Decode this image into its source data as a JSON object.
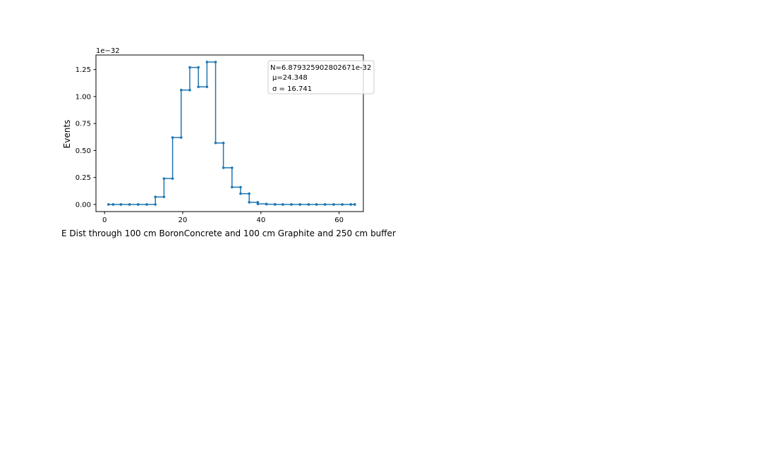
{
  "chart_data": {
    "type": "line",
    "drawstyle": "steps",
    "marker": "dot",
    "color": "#1f77b4",
    "xlabel": "E Dist through 100 cm BoronConcrete and 100 cm Graphite and 250 cm buffer",
    "ylabel": "Events",
    "scale_label": "1e−32",
    "xlim": [
      -2.2,
      66.2
    ],
    "ylim": [
      -0.066,
      1.385
    ],
    "x_ticks": [
      0,
      20,
      40,
      60
    ],
    "x_tick_labels": [
      "0",
      "20",
      "40",
      "60"
    ],
    "y_ticks": [
      0.0,
      0.25,
      0.5,
      0.75,
      1.0,
      1.25
    ],
    "y_tick_labels": [
      "0.00",
      "0.25",
      "0.50",
      "0.75",
      "1.00",
      "1.25"
    ],
    "grid": false,
    "legend_position": "top-right",
    "stats": {
      "N": "N=6.879325902802671e-32",
      "mu": "μ=24.348",
      "sigma": "σ = 16.741"
    },
    "x": [
      1.0,
      2.2,
      4.2,
      6.4,
      8.6,
      10.8,
      13.0,
      15.2,
      17.4,
      19.6,
      21.8,
      24.0,
      26.2,
      28.4,
      30.4,
      32.6,
      34.8,
      37.0,
      39.2,
      41.4,
      43.6,
      45.6,
      47.8,
      50.0,
      52.2,
      54.2,
      56.4,
      58.6,
      60.8,
      63.0,
      64.0
    ],
    "y": [
      0.0,
      0.0,
      0.0,
      0.0,
      0.0,
      0.0,
      0.07,
      0.24,
      0.62,
      1.06,
      1.27,
      1.09,
      1.32,
      0.57,
      0.34,
      0.16,
      0.1,
      0.02,
      0.005,
      0.002,
      0.0,
      0.0,
      0.0,
      0.0,
      0.0,
      0.0,
      0.0,
      0.0,
      0.0,
      0.0,
      0.0
    ]
  }
}
